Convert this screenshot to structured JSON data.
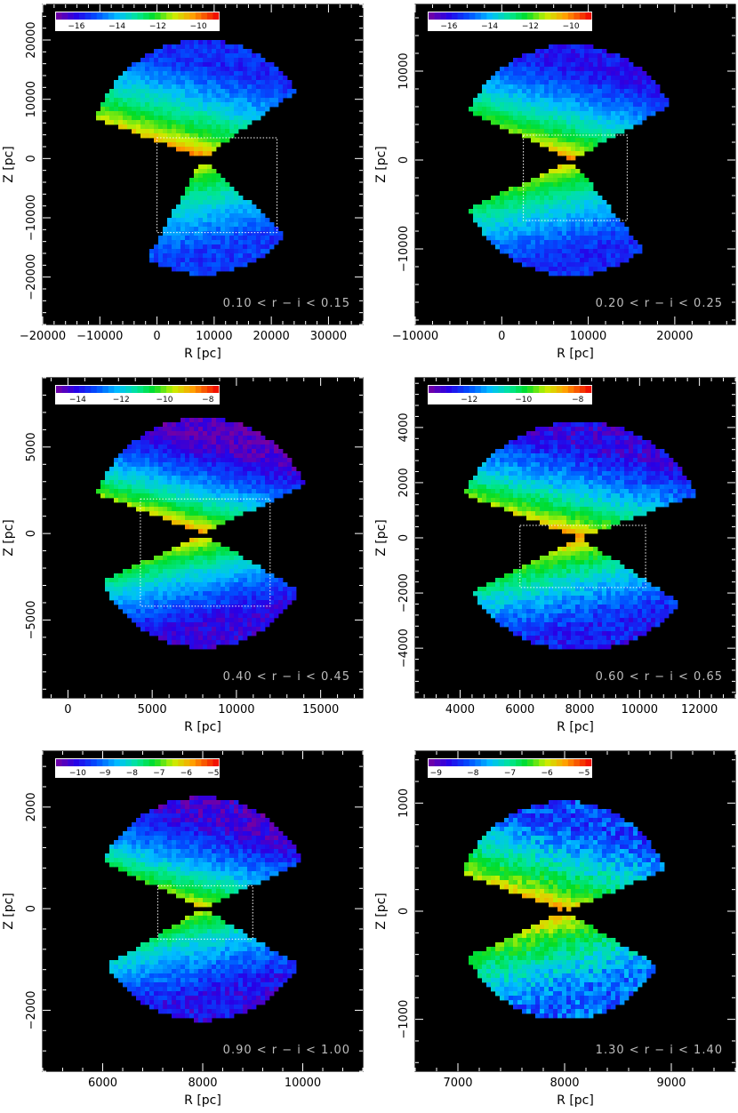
{
  "chart_data": [
    {
      "type": "heatmap",
      "annotation": "0.10 < r − i < 0.15",
      "xlabel": "R [pc]",
      "ylabel": "Z [pc]",
      "xlim": [
        -20000,
        36000
      ],
      "ylim": [
        -28000,
        26000
      ],
      "xticks": [
        -20000,
        -10000,
        0,
        10000,
        20000,
        30000
      ],
      "yticks": [
        -20000,
        -10000,
        0,
        10000,
        20000
      ],
      "colorbar": {
        "range": [
          -17,
          -9
        ],
        "ticks": [
          -16,
          -14,
          -12,
          -10
        ]
      },
      "sun": [
        8000,
        0
      ],
      "upper_lobe": {
        "r_min": 300,
        "r_max": 20000,
        "theta_min": 35,
        "theta_max": 160,
        "vmax": -9.3,
        "vmin": -15.5
      },
      "lower_lobe": {
        "r_min": 1000,
        "r_max": 19500,
        "theta_min": 240,
        "theta_max": 318,
        "vmax": -10.0,
        "vmin": -15.3
      },
      "box": {
        "x0": 0,
        "x1": 21000,
        "y0": -12500,
        "y1": 3500
      }
    },
    {
      "type": "heatmap",
      "annotation": "0.20 < r − i < 0.25",
      "xlabel": "R [pc]",
      "ylabel": "Z [pc]",
      "xlim": [
        -10000,
        27000
      ],
      "ylim": [
        -18500,
        17500
      ],
      "xticks": [
        -10000,
        0,
        10000,
        20000
      ],
      "yticks": [
        -10000,
        0,
        10000
      ],
      "colorbar": {
        "range": [
          -17,
          -9
        ],
        "ticks": [
          -16,
          -14,
          -12,
          -10
        ]
      },
      "sun": [
        8000,
        0
      ],
      "upper_lobe": {
        "r_min": 200,
        "r_max": 13000,
        "theta_min": 28,
        "theta_max": 155,
        "vmax": -9.6,
        "vmin": -15.8
      },
      "lower_lobe": {
        "r_min": 600,
        "r_max": 13000,
        "theta_min": 205,
        "theta_max": 310,
        "vmax": -10.0,
        "vmin": -15.5
      },
      "box": {
        "x0": 2500,
        "x1": 14500,
        "y0": -6800,
        "y1": 2800
      }
    },
    {
      "type": "heatmap",
      "annotation": "0.40 < r − i < 0.45",
      "xlabel": "R [pc]",
      "ylabel": "Z [pc]",
      "xlim": [
        -1500,
        17500
      ],
      "ylim": [
        -9500,
        9000
      ],
      "xticks": [
        0,
        5000,
        10000,
        15000
      ],
      "yticks": [
        -5000,
        0,
        5000
      ],
      "colorbar": {
        "range": [
          -15,
          -7.5
        ],
        "ticks": [
          -14,
          -12,
          -10,
          -8
        ]
      },
      "sun": [
        8000,
        0
      ],
      "upper_lobe": {
        "r_min": 100,
        "r_max": 6700,
        "theta_min": 25,
        "theta_max": 160,
        "vmax": -8.0,
        "vmin": -14.6
      },
      "lower_lobe": {
        "r_min": 200,
        "r_max": 6600,
        "theta_min": 205,
        "theta_max": 330,
        "vmax": -8.2,
        "vmin": -14.2
      },
      "box": {
        "x0": 4300,
        "x1": 12000,
        "y0": -4200,
        "y1": 2000
      }
    },
    {
      "type": "heatmap",
      "annotation": "0.60 < r − i < 0.65",
      "xlabel": "R [pc]",
      "ylabel": "Z [pc]",
      "xlim": [
        2500,
        13200
      ],
      "ylim": [
        -5800,
        5800
      ],
      "xticks": [
        4000,
        6000,
        8000,
        10000,
        12000
      ],
      "yticks": [
        -4000,
        -2000,
        0,
        2000,
        4000
      ],
      "colorbar": {
        "range": [
          -13.5,
          -7.5
        ],
        "ticks": [
          -12,
          -10,
          -8
        ]
      },
      "sun": [
        8000,
        0
      ],
      "upper_lobe": {
        "r_min": 80,
        "r_max": 4200,
        "theta_min": 22,
        "theta_max": 158,
        "vmax": -7.8,
        "vmin": -12.8
      },
      "lower_lobe": {
        "r_min": 100,
        "r_max": 4100,
        "theta_min": 208,
        "theta_max": 325,
        "vmax": -8.0,
        "vmin": -12.5
      },
      "box": {
        "x0": 6000,
        "x1": 10200,
        "y0": -1800,
        "y1": 450
      }
    },
    {
      "type": "heatmap",
      "annotation": "0.90 < r − i < 1.00",
      "xlabel": "R [pc]",
      "ylabel": "Z [pc]",
      "xlim": [
        4800,
        11200
      ],
      "ylim": [
        -3200,
        3100
      ],
      "xticks": [
        6000,
        8000,
        10000
      ],
      "yticks": [
        -2000,
        0,
        2000
      ],
      "colorbar": {
        "range": [
          -10.8,
          -4.8
        ],
        "ticks": [
          -10,
          -9,
          -8,
          -7,
          -6,
          -5
        ]
      },
      "sun": [
        8000,
        0
      ],
      "upper_lobe": {
        "r_min": 50,
        "r_max": 2200,
        "theta_min": 25,
        "theta_max": 155,
        "vmax": -5.6,
        "vmin": -10.3
      },
      "lower_lobe": {
        "r_min": 80,
        "r_max": 2200,
        "theta_min": 210,
        "theta_max": 330,
        "vmax": -6.0,
        "vmin": -10.0
      },
      "box": {
        "x0": 7100,
        "x1": 9000,
        "y0": -600,
        "y1": 450
      }
    },
    {
      "type": "heatmap",
      "annotation": "1.30 < r − i < 1.40",
      "xlabel": "R [pc]",
      "ylabel": "Z [pc]",
      "xlim": [
        6600,
        9600
      ],
      "ylim": [
        -1480,
        1480
      ],
      "xticks": [
        7000,
        8000,
        9000
      ],
      "yticks": [
        -1000,
        0,
        1000
      ],
      "colorbar": {
        "range": [
          -9.2,
          -4.8
        ],
        "ticks": [
          -9,
          -8,
          -7,
          -6,
          -5
        ]
      },
      "sun": [
        8000,
        0
      ],
      "upper_lobe": {
        "r_min": 30,
        "r_max": 1020,
        "theta_min": 22,
        "theta_max": 160,
        "vmax": -5.1,
        "vmin": -8.2
      },
      "lower_lobe": {
        "r_min": 40,
        "r_max": 1000,
        "theta_min": 205,
        "theta_max": 330,
        "vmax": -5.2,
        "vmin": -8.0
      },
      "box": null
    }
  ]
}
